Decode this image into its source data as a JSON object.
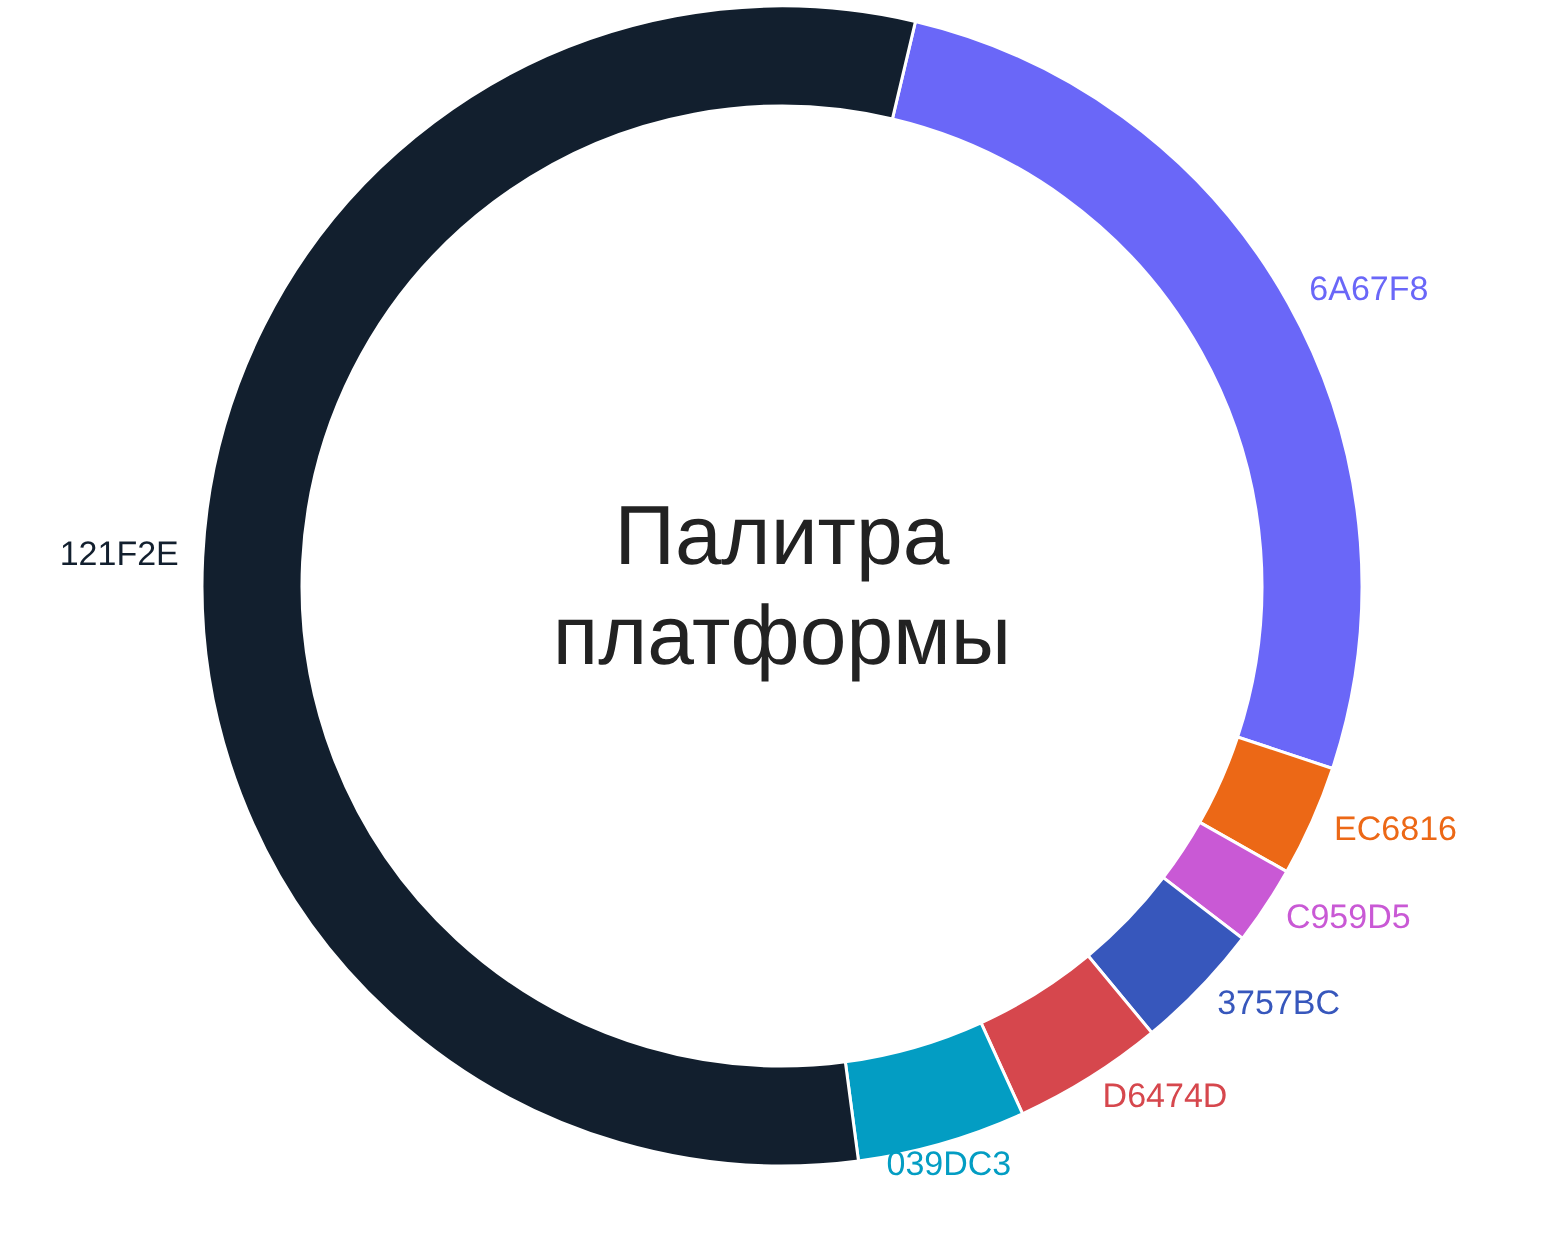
{
  "chart_data": {
    "type": "donut",
    "title": "Палитра платформы",
    "categories": [
      "6A67F8",
      "EC6816",
      "C959D5",
      "3757BC",
      "D6474D",
      "039DC3",
      "121F2E"
    ],
    "values": [
      26.4,
      3.1,
      2.2,
      3.6,
      4.2,
      4.7,
      55.8
    ],
    "colors": [
      "#6a67f8",
      "#ec6816",
      "#c959d5",
      "#3757bc",
      "#d6474d",
      "#039dc3",
      "#121f2e"
    ]
  }
}
